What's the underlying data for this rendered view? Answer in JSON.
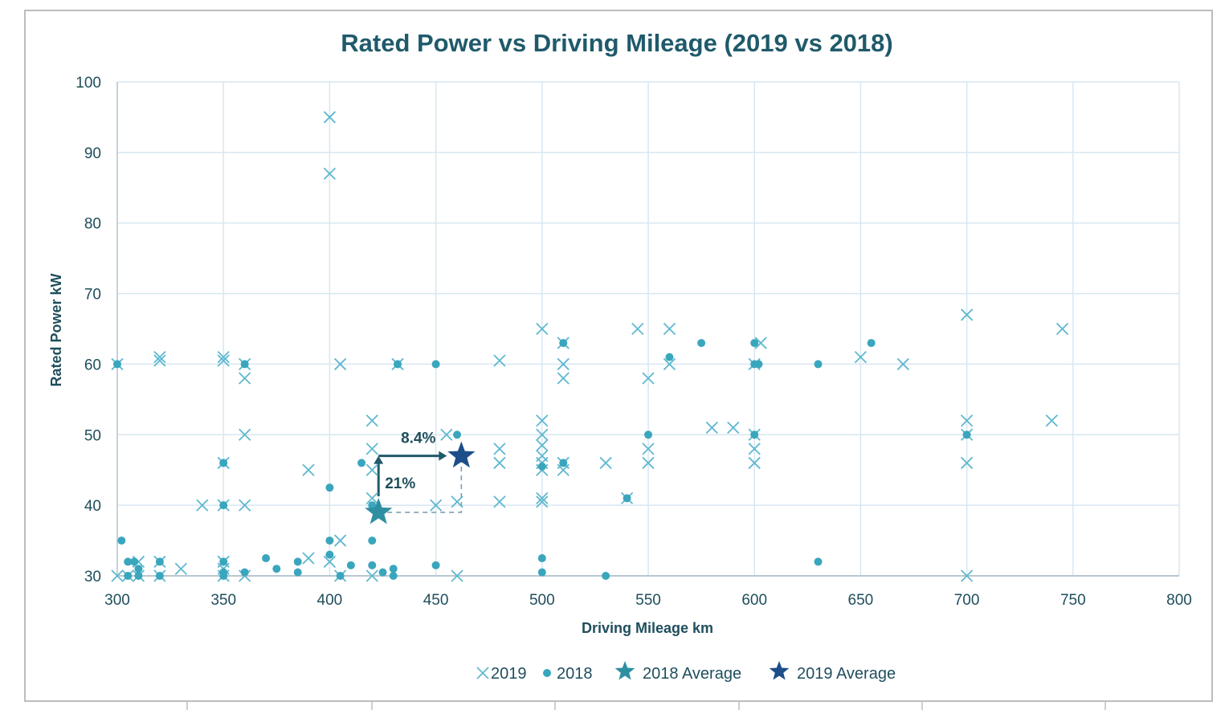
{
  "chart_data": {
    "type": "scatter",
    "title": "Rated Power vs Driving Mileage (2019 vs 2018)",
    "xlabel": "Driving Mileage km",
    "ylabel": "Rated Power kW",
    "xlim": [
      300,
      800
    ],
    "ylim": [
      30,
      100
    ],
    "xticks": [
      300,
      350,
      400,
      450,
      500,
      550,
      600,
      650,
      700,
      750,
      800
    ],
    "yticks": [
      30,
      40,
      50,
      60,
      70,
      80,
      90,
      100
    ],
    "grid": true,
    "legend_position": "bottom",
    "colors": {
      "series_2019": "#5fb8cf",
      "series_2018": "#3aa6bd",
      "avg_2018": "#2f8fa2",
      "avg_2019": "#1d4e89",
      "annotation": "#1f5a6b",
      "grid": "#d7e7f2"
    },
    "series": [
      {
        "name": "2019",
        "marker": "x",
        "points": [
          [
            300,
            60
          ],
          [
            300,
            30
          ],
          [
            305,
            30
          ],
          [
            310,
            32
          ],
          [
            310,
            30
          ],
          [
            320,
            61
          ],
          [
            320,
            60.5
          ],
          [
            320,
            32
          ],
          [
            320,
            30
          ],
          [
            330,
            31
          ],
          [
            340,
            40
          ],
          [
            350,
            61
          ],
          [
            350,
            60.5
          ],
          [
            350,
            46
          ],
          [
            350,
            40
          ],
          [
            350,
            32
          ],
          [
            350,
            31
          ],
          [
            350,
            30
          ],
          [
            360,
            60
          ],
          [
            360,
            58
          ],
          [
            360,
            50
          ],
          [
            360,
            40
          ],
          [
            360,
            30
          ],
          [
            390,
            45
          ],
          [
            390,
            32.5
          ],
          [
            400,
            95
          ],
          [
            400,
            87
          ],
          [
            400,
            32
          ],
          [
            405,
            60
          ],
          [
            405,
            35
          ],
          [
            405,
            30
          ],
          [
            420,
            52
          ],
          [
            420,
            48
          ],
          [
            420,
            45
          ],
          [
            420,
            41
          ],
          [
            420,
            30
          ],
          [
            432,
            60
          ],
          [
            450,
            40
          ],
          [
            455,
            50
          ],
          [
            460,
            40.5
          ],
          [
            460,
            30
          ],
          [
            480,
            60.5
          ],
          [
            480,
            48
          ],
          [
            480,
            46
          ],
          [
            480,
            40.5
          ],
          [
            500,
            65
          ],
          [
            500,
            52
          ],
          [
            500,
            50
          ],
          [
            500,
            48.5
          ],
          [
            500,
            47
          ],
          [
            500,
            46
          ],
          [
            500,
            45
          ],
          [
            500,
            41
          ],
          [
            500,
            40.5
          ],
          [
            510,
            63
          ],
          [
            510,
            60
          ],
          [
            510,
            58
          ],
          [
            510,
            46
          ],
          [
            510,
            45
          ],
          [
            530,
            46
          ],
          [
            540,
            41
          ],
          [
            545,
            65
          ],
          [
            550,
            58
          ],
          [
            550,
            48
          ],
          [
            550,
            46
          ],
          [
            560,
            65
          ],
          [
            560,
            60
          ],
          [
            580,
            51
          ],
          [
            590,
            51
          ],
          [
            600,
            60
          ],
          [
            600,
            50
          ],
          [
            600,
            48
          ],
          [
            600,
            46
          ],
          [
            603,
            63
          ],
          [
            650,
            61
          ],
          [
            670,
            60
          ],
          [
            700,
            67
          ],
          [
            700,
            52
          ],
          [
            700,
            50
          ],
          [
            700,
            46
          ],
          [
            700,
            30
          ],
          [
            740,
            52
          ],
          [
            745,
            65
          ]
        ]
      },
      {
        "name": "2018",
        "marker": "dot",
        "points": [
          [
            300,
            60
          ],
          [
            302,
            35
          ],
          [
            305,
            32
          ],
          [
            305,
            30
          ],
          [
            308,
            32
          ],
          [
            310,
            31
          ],
          [
            310,
            30
          ],
          [
            320,
            32
          ],
          [
            320,
            30
          ],
          [
            350,
            46
          ],
          [
            350,
            40
          ],
          [
            350,
            32
          ],
          [
            350,
            30.5
          ],
          [
            350,
            30
          ],
          [
            360,
            60
          ],
          [
            360,
            30.5
          ],
          [
            370,
            32.5
          ],
          [
            375,
            31
          ],
          [
            385,
            32
          ],
          [
            385,
            30.5
          ],
          [
            400,
            42.5
          ],
          [
            400,
            35
          ],
          [
            400,
            33
          ],
          [
            405,
            30
          ],
          [
            410,
            31.5
          ],
          [
            415,
            46
          ],
          [
            420,
            40
          ],
          [
            420,
            35
          ],
          [
            420,
            31.5
          ],
          [
            425,
            30.5
          ],
          [
            430,
            31
          ],
          [
            430,
            30
          ],
          [
            432,
            60
          ],
          [
            450,
            60
          ],
          [
            450,
            31.5
          ],
          [
            460,
            50
          ],
          [
            500,
            45.5
          ],
          [
            500,
            32.5
          ],
          [
            500,
            30.5
          ],
          [
            510,
            63
          ],
          [
            510,
            46
          ],
          [
            530,
            30
          ],
          [
            540,
            41
          ],
          [
            550,
            50
          ],
          [
            560,
            61
          ],
          [
            575,
            63
          ],
          [
            600,
            63
          ],
          [
            600,
            60
          ],
          [
            600,
            50
          ],
          [
            602,
            60
          ],
          [
            630,
            60
          ],
          [
            630,
            32
          ],
          [
            655,
            63
          ],
          [
            700,
            50
          ]
        ]
      },
      {
        "name": "2018 Average",
        "marker": "star",
        "points": [
          [
            423,
            39
          ]
        ]
      },
      {
        "name": "2019 Average",
        "marker": "star",
        "points": [
          [
            462,
            47
          ]
        ]
      }
    ],
    "annotations": [
      {
        "text": "8.4%"
      },
      {
        "text": "21%"
      }
    ]
  }
}
